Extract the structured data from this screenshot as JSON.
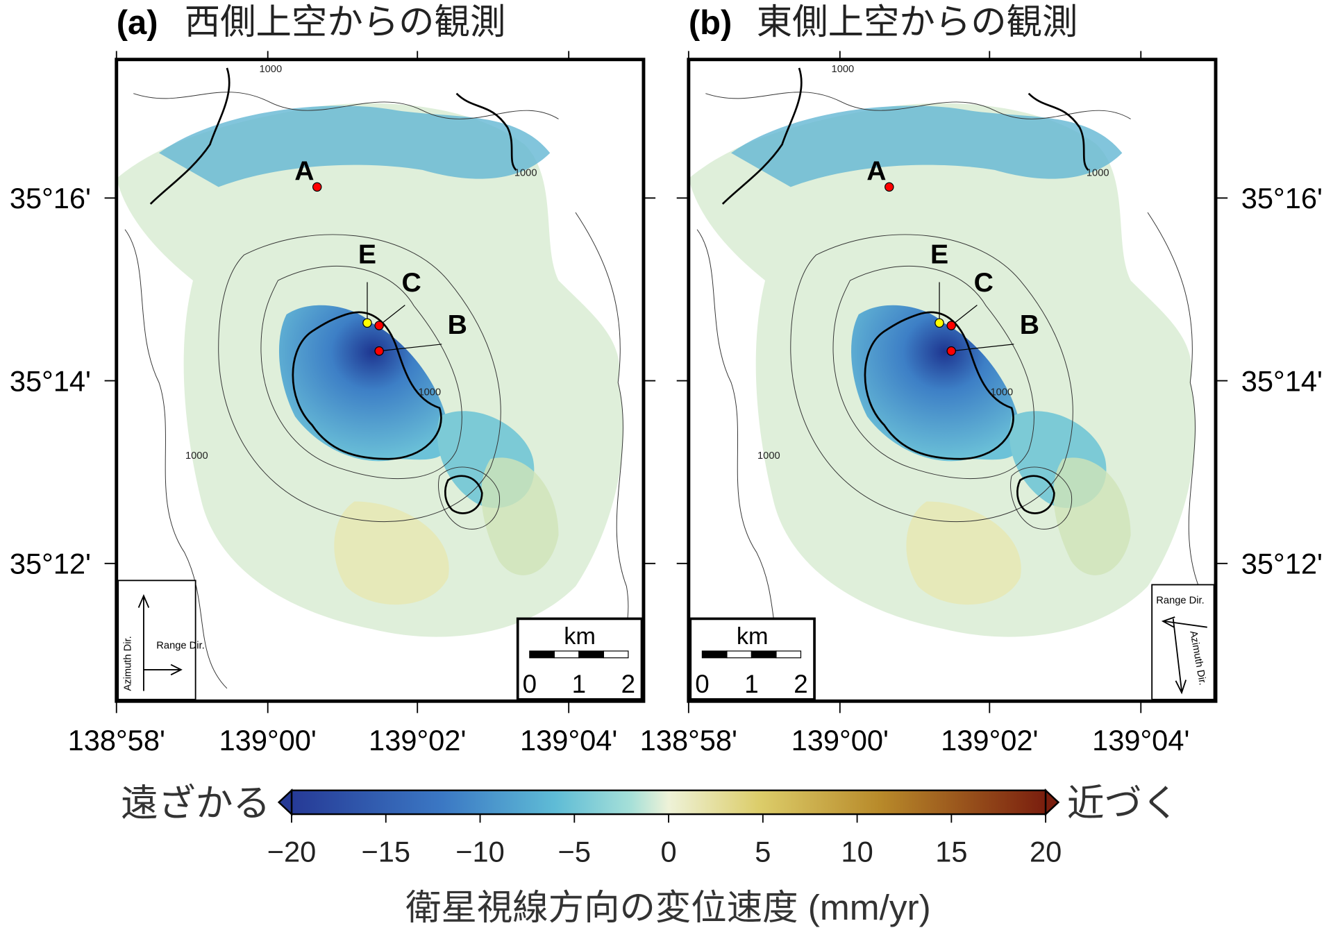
{
  "panels": [
    {
      "label": "(a)",
      "title": "西側上空からの観測",
      "lon_ticks": [
        "138°58'",
        "139°00'",
        "139°02'",
        "139°04'"
      ],
      "lat_ticks": [
        "35°16'",
        "35°14'",
        "35°12'"
      ],
      "points": [
        "A",
        "E",
        "C",
        "B"
      ],
      "contour_labels": [
        "1000",
        "1000",
        "1000",
        "1000"
      ],
      "scalebar": {
        "unit": "km",
        "ticks": [
          0,
          1,
          2
        ]
      },
      "direction": {
        "range": "Range Dir.",
        "azimuth": "Azimuth Dir."
      }
    },
    {
      "label": "(b)",
      "title": "東側上空からの観測",
      "lon_ticks": [
        "138°58'",
        "139°00'",
        "139°02'",
        "139°04'"
      ],
      "lat_ticks": [
        "35°16'",
        "35°14'",
        "35°12'"
      ],
      "points": [
        "A",
        "E",
        "C",
        "B"
      ],
      "contour_labels": [
        "1000",
        "1000",
        "1000",
        "1000"
      ],
      "scalebar": {
        "unit": "km",
        "ticks": [
          0,
          1,
          2
        ]
      },
      "direction": {
        "range": "Range Dir.",
        "azimuth": "Azimuth Dir."
      }
    }
  ],
  "colorbar": {
    "left_label": "遠ざかる",
    "right_label": "近づく",
    "lim": [
      -20,
      20
    ],
    "ticks": [
      {
        "value": -20,
        "label": "−20"
      },
      {
        "value": -15,
        "label": "−15"
      },
      {
        "value": -10,
        "label": "−10"
      },
      {
        "value": -5,
        "label": "−5"
      },
      0,
      5,
      10,
      15,
      20
    ],
    "label": "衛星視線方向の変位速度 (mm/yr)"
  }
}
